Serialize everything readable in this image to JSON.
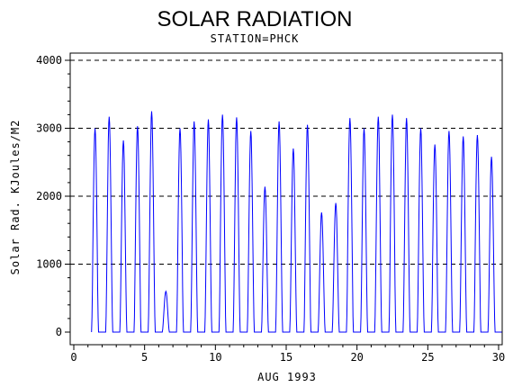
{
  "chart_data": {
    "type": "line",
    "title": "SOLAR RADIATION",
    "subtitle": "STATION=PHCK",
    "xlabel": "AUG 1993",
    "ylabel": "Solar Rad. KJoules/M2",
    "xlim": [
      0,
      30
    ],
    "ylim": [
      0,
      4000
    ],
    "x_ticks": [
      0,
      5,
      10,
      15,
      20,
      25,
      30
    ],
    "y_ticks": [
      0,
      1000,
      2000,
      3000,
      4000
    ],
    "grid": "horizontal-dashed",
    "series": [
      {
        "color": "#0000ff",
        "daily_peaks": [
          {
            "day": 1,
            "peak": 3000
          },
          {
            "day": 2,
            "peak": 3170
          },
          {
            "day": 3,
            "peak": 2820
          },
          {
            "day": 4,
            "peak": 3030
          },
          {
            "day": 5,
            "peak": 3250
          },
          {
            "day": 6,
            "peak": 600
          },
          {
            "day": 7,
            "peak": 3000
          },
          {
            "day": 8,
            "peak": 3100
          },
          {
            "day": 9,
            "peak": 3130
          },
          {
            "day": 10,
            "peak": 3200
          },
          {
            "day": 11,
            "peak": 3160
          },
          {
            "day": 12,
            "peak": 2960
          },
          {
            "day": 13,
            "peak": 2140
          },
          {
            "day": 14,
            "peak": 3100
          },
          {
            "day": 15,
            "peak": 2700
          },
          {
            "day": 16,
            "peak": 3050
          },
          {
            "day": 17,
            "peak": 1760
          },
          {
            "day": 18,
            "peak": 1900
          },
          {
            "day": 19,
            "peak": 3150
          },
          {
            "day": 20,
            "peak": 3000
          },
          {
            "day": 21,
            "peak": 3170
          },
          {
            "day": 22,
            "peak": 3200
          },
          {
            "day": 23,
            "peak": 3150
          },
          {
            "day": 24,
            "peak": 3000
          },
          {
            "day": 25,
            "peak": 2760
          },
          {
            "day": 26,
            "peak": 2960
          },
          {
            "day": 27,
            "peak": 2880
          },
          {
            "day": 28,
            "peak": 2900
          },
          {
            "day": 29,
            "peak": 2580
          }
        ]
      }
    ]
  }
}
